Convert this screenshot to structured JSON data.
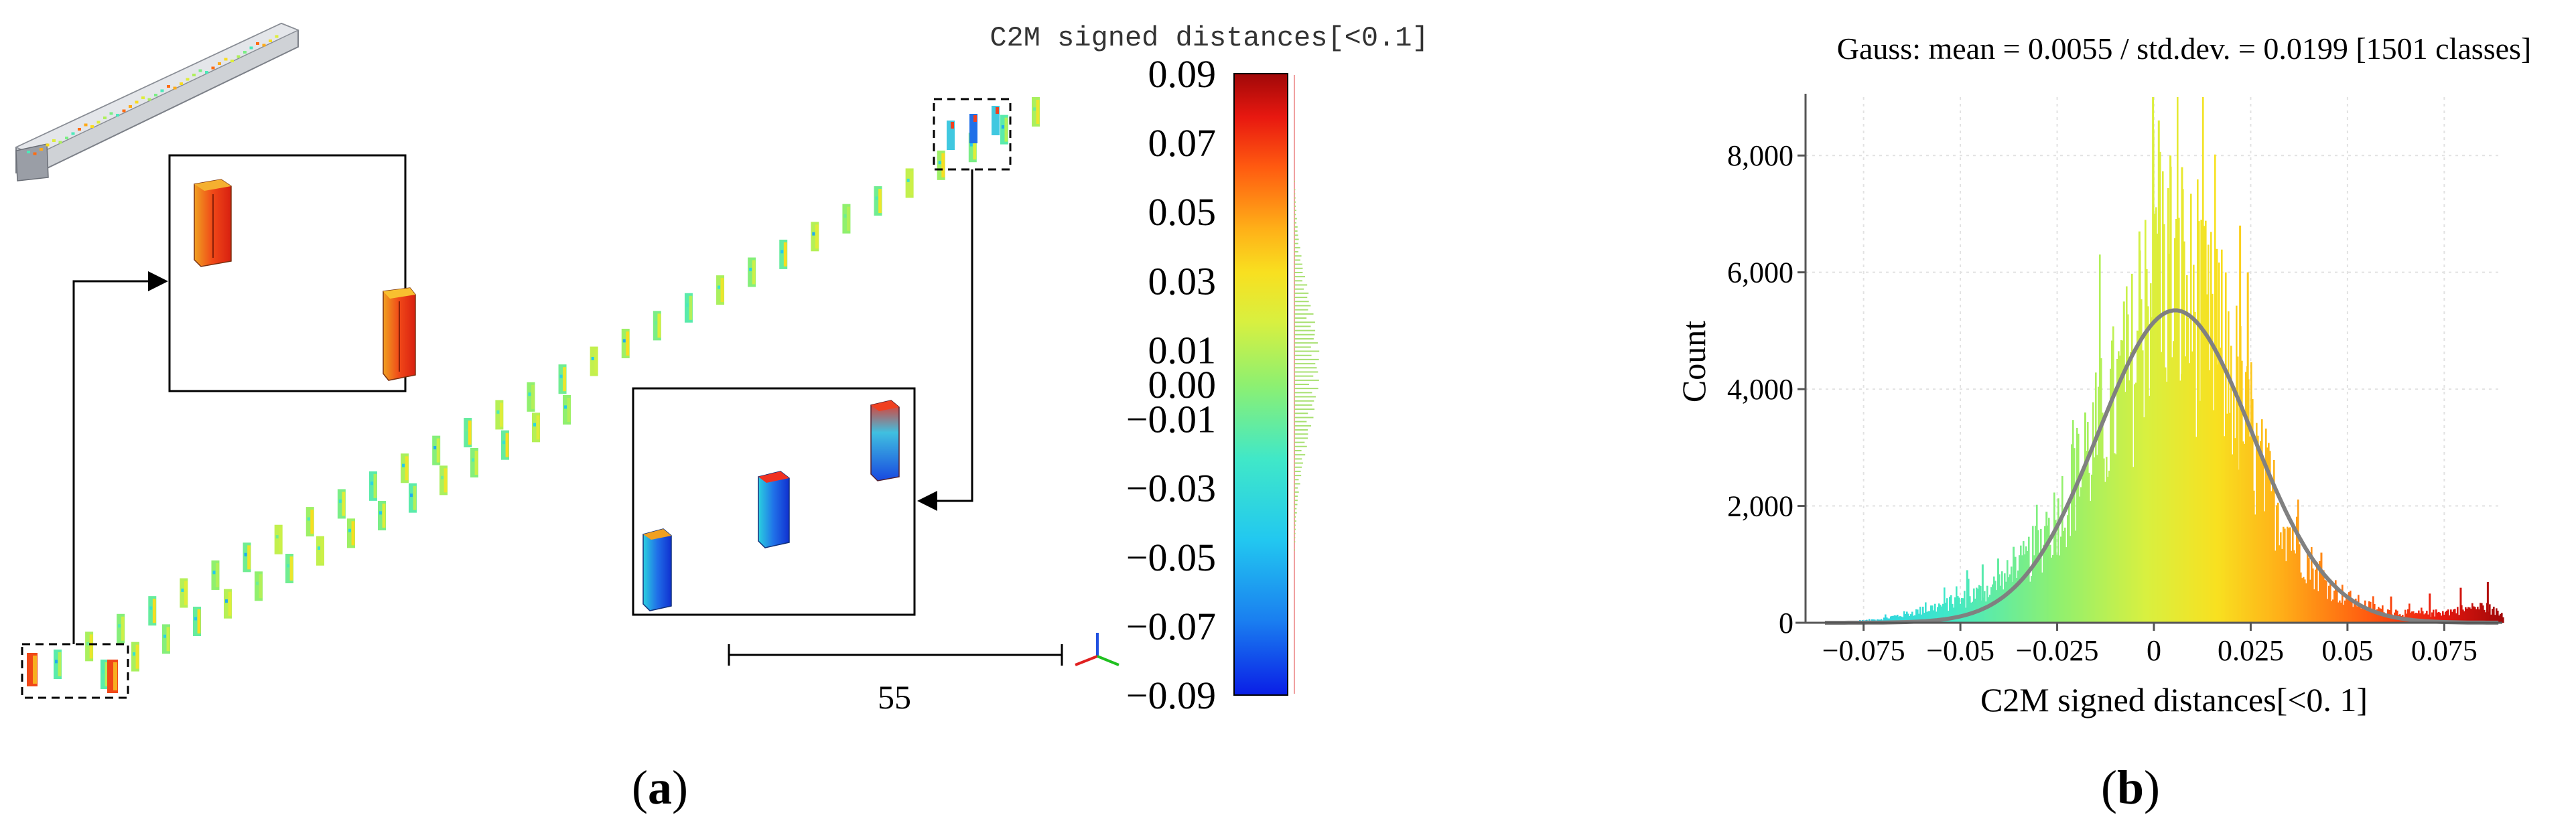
{
  "panel_a": {
    "label_open": "(",
    "label_letter": "a",
    "label_close": ")",
    "scale_bar_label": "55",
    "colorbar": {
      "title": "C2M signed distances[<0.1]",
      "ticks": [
        "0.09",
        "0.07",
        "0.05",
        "0.03",
        "0.01",
        "0.00",
        "−0.01",
        "−0.03",
        "−0.05",
        "−0.07",
        "−0.09"
      ],
      "tick_values": [
        0.09,
        0.07,
        0.05,
        0.03,
        0.01,
        0.0,
        -0.01,
        -0.03,
        -0.05,
        -0.07,
        -0.09
      ],
      "range": [
        -0.09,
        0.09
      ]
    }
  },
  "panel_b": {
    "label_open": "(",
    "label_letter": "b",
    "label_close": ")"
  },
  "chart_data": {
    "type": "bar",
    "title": "Gauss: mean = 0.0055 / std.dev. = 0.0199 [1501 classes]",
    "xlabel": "C2M signed distances[<0. 1]",
    "ylabel": "Count",
    "x_ticks": [
      "−0.075",
      "−0.05",
      "−0.025",
      "0",
      "0.025",
      "0.05",
      "0.075"
    ],
    "x_tick_values": [
      -0.075,
      -0.05,
      -0.025,
      0,
      0.025,
      0.05,
      0.075
    ],
    "y_ticks": [
      "0",
      "2,000",
      "4,000",
      "6,000",
      "8,000"
    ],
    "y_tick_values": [
      0,
      2000,
      4000,
      6000,
      8000
    ],
    "xlim": [
      -0.09,
      0.09
    ],
    "ylim": [
      0,
      9000
    ],
    "gauss_mean": 0.0055,
    "gauss_std": 0.0199,
    "gauss_peak": 5350,
    "classes": 1501,
    "grid": true,
    "histogram_envelope": [
      [
        -0.09,
        0
      ],
      [
        -0.085,
        5
      ],
      [
        -0.08,
        15
      ],
      [
        -0.075,
        40
      ],
      [
        -0.07,
        80
      ],
      [
        -0.065,
        150
      ],
      [
        -0.06,
        230
      ],
      [
        -0.055,
        320
      ],
      [
        -0.05,
        420
      ],
      [
        -0.045,
        560
      ],
      [
        -0.04,
        740
      ],
      [
        -0.035,
        1000
      ],
      [
        -0.03,
        1400
      ],
      [
        -0.025,
        2000
      ],
      [
        -0.02,
        2700
      ],
      [
        -0.015,
        3400
      ],
      [
        -0.01,
        4100
      ],
      [
        -0.005,
        4900
      ],
      [
        0.0,
        7000
      ],
      [
        0.005,
        6300
      ],
      [
        0.01,
        5800
      ],
      [
        0.015,
        5200
      ],
      [
        0.02,
        4700
      ],
      [
        0.025,
        3200
      ],
      [
        0.03,
        2400
      ],
      [
        0.035,
        1700
      ],
      [
        0.04,
        1100
      ],
      [
        0.045,
        700
      ],
      [
        0.05,
        450
      ],
      [
        0.055,
        300
      ],
      [
        0.06,
        220
      ],
      [
        0.065,
        180
      ],
      [
        0.07,
        160
      ],
      [
        0.075,
        200
      ],
      [
        0.08,
        250
      ],
      [
        0.085,
        300
      ],
      [
        0.09,
        150
      ]
    ],
    "histogram_spikes": [
      [
        -0.0485,
        900
      ],
      [
        -0.0445,
        1000
      ],
      [
        -0.0405,
        1100
      ],
      [
        -0.0365,
        1300
      ],
      [
        -0.028,
        1900
      ],
      [
        -0.018,
        3600
      ],
      [
        -0.008,
        5500
      ],
      [
        -0.004,
        6700
      ],
      [
        -0.0005,
        9000
      ],
      [
        0.001,
        8600
      ],
      [
        0.004,
        8000
      ],
      [
        0.007,
        7800
      ],
      [
        0.012,
        6900
      ],
      [
        0.016,
        6400
      ],
      [
        0.022,
        6800
      ],
      [
        0.024,
        6000
      ],
      [
        0.029,
        3000
      ],
      [
        0.043,
        1200
      ],
      [
        0.061,
        450
      ],
      [
        0.071,
        500
      ],
      [
        0.079,
        600
      ],
      [
        0.086,
        700
      ]
    ]
  }
}
